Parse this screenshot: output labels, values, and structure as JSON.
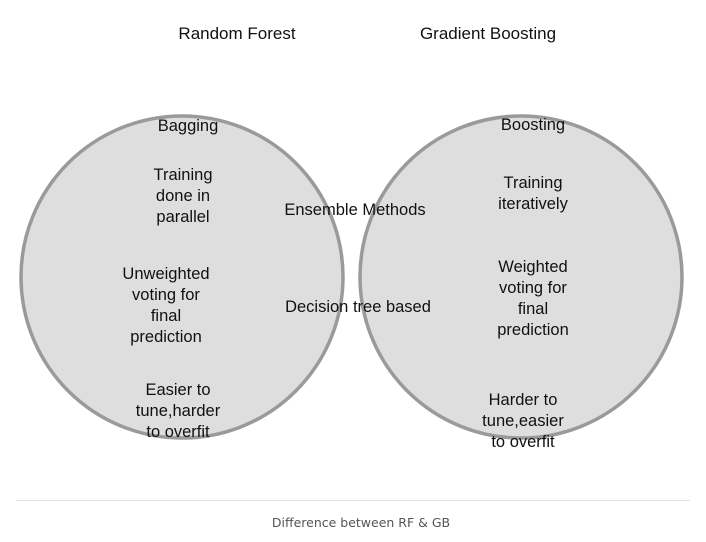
{
  "sets": {
    "left": {
      "title": "Random Forest",
      "items": [
        "Bagging",
        "Training\ndone in\nparallel",
        "Unweighted\nvoting for\nfinal\nprediction",
        "Easier to\ntune,harder\nto overfit"
      ]
    },
    "right": {
      "title": "Gradient Boosting",
      "items": [
        "Boosting",
        "Training\niteratively",
        "Weighted\nvoting for\nfinal\nprediction",
        "Harder to\ntune,easier\nto overfit"
      ]
    },
    "shared": {
      "items": [
        "Ensemble Methods",
        "Decision tree based"
      ]
    }
  },
  "caption": "Difference between RF & GB",
  "colors": {
    "circle_fill": "#dedede",
    "circle_stroke": "#9a9a9a",
    "overlap_fill": "#35a3a3",
    "overlap_stroke": "#000000"
  }
}
